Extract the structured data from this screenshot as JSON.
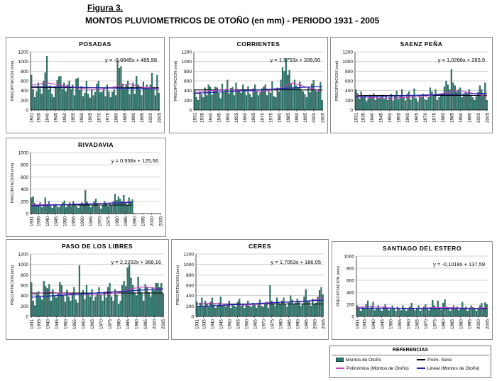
{
  "header": {
    "figure_label": "Figura 3.",
    "title": "MONTOS PLUVIOMETRICOS DE OTOÑO (en mm) - PERIODO 1931 - 2005"
  },
  "colors": {
    "bar": "#2f7a70",
    "bar_edge": "#0d3c36",
    "mean_line": "#000000",
    "poly_line": "#c23fbf",
    "linear_line": "#1f1fb3"
  },
  "legend": {
    "title": "REFERENCIAS",
    "items": [
      {
        "label": "Montos de Otoño",
        "kind": "bar"
      },
      {
        "label": "Prom. Serie",
        "kind": "mean"
      },
      {
        "label": "Polinómica (Montos de Otoño)",
        "kind": "poly"
      },
      {
        "label": "Lineal (Montos de Otoño)",
        "kind": "linear"
      }
    ]
  },
  "chart_data": [
    {
      "type": "bar",
      "title": "POSADAS",
      "equation": "y = -0,6845x + 485,98",
      "ylabel": "PRECIPITACION (mm)",
      "ylim": [
        0,
        1200
      ],
      "yticks": [
        "0",
        "200",
        "400",
        "600",
        "800",
        "1000",
        "1200"
      ],
      "xticks": [
        "1931",
        "1935",
        "1940",
        "1945",
        "1950",
        "1955",
        "1960",
        "1965",
        "1970",
        "1975",
        "1980",
        "1985",
        "1990",
        "1995",
        "2000",
        "2005"
      ],
      "x_start": 1931,
      "x_end": 2005,
      "mean": 460,
      "values": [
        720,
        420,
        260,
        380,
        560,
        440,
        330,
        600,
        770,
        1110,
        420,
        500,
        330,
        260,
        490,
        610,
        690,
        700,
        430,
        560,
        380,
        520,
        600,
        430,
        520,
        300,
        640,
        660,
        410,
        490,
        280,
        350,
        600,
        330,
        250,
        420,
        300,
        370,
        540,
        600,
        360,
        380,
        430,
        280,
        520,
        380,
        260,
        370,
        420,
        300,
        1020,
        860,
        900,
        540,
        430,
        520,
        600,
        320,
        480,
        560,
        330,
        700,
        520,
        420,
        300,
        580,
        460,
        520,
        430,
        520,
        760,
        470,
        300,
        720,
        350
      ],
      "poly": [
        [
          1931,
          510
        ],
        [
          1940,
          560
        ],
        [
          1950,
          500
        ],
        [
          1960,
          440
        ],
        [
          1970,
          420
        ],
        [
          1980,
          480
        ],
        [
          1988,
          540
        ],
        [
          1995,
          470
        ],
        [
          2005,
          440
        ]
      ],
      "linear": [
        [
          1931,
          485
        ],
        [
          2005,
          434
        ]
      ]
    },
    {
      "type": "bar",
      "title": "CORRIENTES",
      "equation": "y = 1,9753x + 339,66",
      "ylabel": "PRECIPITACION (mm)",
      "ylim": [
        0,
        1200
      ],
      "yticks": [
        "0",
        "200",
        "400",
        "600",
        "800",
        "1000",
        "1200"
      ],
      "xticks": [
        "1931",
        "1935",
        "1940",
        "1945",
        "1950",
        "1955",
        "1960",
        "1965",
        "1970",
        "1975",
        "1980",
        "1985",
        "1990",
        "1995",
        "2000",
        "2005"
      ],
      "x_start": 1931,
      "x_end": 2005,
      "mean": 415,
      "values": [
        420,
        260,
        200,
        380,
        320,
        260,
        460,
        300,
        520,
        480,
        310,
        400,
        480,
        460,
        350,
        240,
        540,
        380,
        430,
        620,
        340,
        450,
        470,
        300,
        560,
        430,
        390,
        350,
        520,
        420,
        300,
        490,
        330,
        260,
        440,
        520,
        380,
        300,
        360,
        440,
        480,
        520,
        300,
        420,
        350,
        590,
        280,
        260,
        460,
        380,
        620,
        880,
        800,
        1060,
        720,
        820,
        540,
        460,
        620,
        500,
        460,
        580,
        420,
        380,
        320,
        260,
        480,
        360,
        540,
        610,
        430,
        380,
        420,
        570,
        200
      ],
      "poly": [
        [
          1931,
          360
        ],
        [
          1940,
          400
        ],
        [
          1950,
          420
        ],
        [
          1960,
          400
        ],
        [
          1970,
          380
        ],
        [
          1980,
          440
        ],
        [
          1988,
          560
        ],
        [
          1995,
          480
        ],
        [
          2005,
          380
        ]
      ],
      "linear": [
        [
          1931,
          342
        ],
        [
          2005,
          488
        ]
      ]
    },
    {
      "type": "bar",
      "title": "SAENZ PEÑA",
      "equation": "y = 1,0266x + 265,9",
      "ylabel": "PRECIPITACION (mm)",
      "ylim": [
        0,
        1200
      ],
      "yticks": [
        "0",
        "200",
        "400",
        "600",
        "800",
        "1000",
        "1200"
      ],
      "xticks": [
        "1931",
        "1935",
        "1940",
        "1945",
        "1950",
        "1955",
        "1960",
        "1965",
        "1970",
        "1975",
        "1980",
        "1985",
        "1990",
        "1995",
        "2000",
        "2005"
      ],
      "x_start": 1931,
      "x_end": 2005,
      "mean": 300,
      "values": [
        420,
        340,
        230,
        380,
        260,
        300,
        180,
        240,
        310,
        260,
        340,
        200,
        280,
        240,
        260,
        310,
        220,
        300,
        200,
        260,
        330,
        190,
        280,
        390,
        220,
        300,
        420,
        270,
        190,
        330,
        380,
        210,
        300,
        440,
        240,
        170,
        300,
        260,
        330,
        220,
        200,
        260,
        460,
        380,
        300,
        420,
        200,
        260,
        300,
        340,
        480,
        600,
        520,
        420,
        840,
        560,
        500,
        380,
        420,
        460,
        260,
        320,
        380,
        340,
        420,
        300,
        260,
        200,
        280,
        360,
        500,
        420,
        320,
        560,
        200
      ],
      "poly": [
        [
          1931,
          300
        ],
        [
          1940,
          250
        ],
        [
          1950,
          240
        ],
        [
          1960,
          260
        ],
        [
          1970,
          280
        ],
        [
          1980,
          340
        ],
        [
          1988,
          400
        ],
        [
          1995,
          360
        ],
        [
          2005,
          280
        ]
      ],
      "linear": [
        [
          1931,
          267
        ],
        [
          2005,
          343
        ]
      ]
    },
    {
      "type": "bar",
      "title": "RIVADAVIA",
      "equation": "y = 0,938x + 125,56",
      "ylabel": "PRECIPITACION (mm)",
      "ylim": [
        0,
        1000
      ],
      "yticks": [
        "0",
        "200",
        "400",
        "600",
        "800",
        "1000"
      ],
      "xticks": [
        "1931",
        "1935",
        "1940",
        "1945",
        "1950",
        "1955",
        "1960",
        "1965",
        "1970",
        "1975",
        "1980",
        "1985",
        "1990",
        "1995",
        "2000",
        "2005"
      ],
      "x_start": 1931,
      "x_end": 1989,
      "mean": 140,
      "values": [
        260,
        280,
        170,
        120,
        150,
        180,
        100,
        120,
        260,
        150,
        200,
        120,
        90,
        140,
        160,
        110,
        100,
        130,
        180,
        210,
        100,
        150,
        180,
        120,
        200,
        160,
        120,
        90,
        150,
        180,
        140,
        380,
        190,
        160,
        100,
        130,
        200,
        240,
        150,
        120,
        80,
        130,
        200,
        160,
        120,
        170,
        130,
        200,
        320,
        220,
        280,
        240,
        200,
        300,
        180,
        140,
        260,
        200,
        230
      ],
      "poly": [
        [
          1931,
          140
        ],
        [
          1940,
          150
        ],
        [
          1950,
          140
        ],
        [
          1960,
          160
        ],
        [
          1970,
          160
        ],
        [
          1980,
          180
        ],
        [
          1989,
          190
        ]
      ],
      "linear": [
        [
          1931,
          127
        ],
        [
          1989,
          182
        ]
      ]
    },
    {
      "type": "bar",
      "title": "PASO DE LOS LIBRES",
      "equation": "y = 2,2202x + 368,16",
      "ylabel": "PRECIPITACION (mm)",
      "ylim": [
        0,
        1200
      ],
      "yticks": [
        "0",
        "200",
        "400",
        "600",
        "800",
        "1000",
        "1200"
      ],
      "xticks": [
        "1931",
        "1935",
        "1940",
        "1945",
        "1950",
        "1955",
        "1960",
        "1965",
        "1970",
        "1975",
        "1980",
        "1985",
        "1990",
        "1995",
        "2000",
        "2005"
      ],
      "x_start": 1931,
      "x_end": 2005,
      "mean": 450,
      "values": [
        650,
        300,
        210,
        420,
        480,
        380,
        320,
        680,
        580,
        540,
        620,
        300,
        520,
        390,
        360,
        440,
        660,
        600,
        400,
        280,
        510,
        380,
        300,
        420,
        560,
        320,
        260,
        980,
        420,
        500,
        330,
        600,
        440,
        380,
        520,
        300,
        380,
        460,
        560,
        410,
        300,
        470,
        360,
        560,
        640,
        380,
        300,
        520,
        420,
        240,
        300,
        600,
        680,
        580,
        940,
        1000,
        740,
        600,
        460,
        400,
        760,
        540,
        460,
        300,
        620,
        560,
        460,
        380,
        560,
        500,
        640,
        640,
        560,
        640,
        440
      ],
      "poly": [
        [
          1931,
          420
        ],
        [
          1940,
          470
        ],
        [
          1950,
          440
        ],
        [
          1960,
          430
        ],
        [
          1970,
          420
        ],
        [
          1980,
          460
        ],
        [
          1988,
          540
        ],
        [
          1995,
          570
        ],
        [
          2005,
          520
        ]
      ],
      "linear": [
        [
          1931,
          370
        ],
        [
          2005,
          534
        ]
      ]
    },
    {
      "type": "bar",
      "title": "CERES",
      "equation": "y = 1,7053x + 186,05",
      "ylabel": "PRECIPITACION (mm)",
      "ylim": [
        0,
        1200
      ],
      "yticks": [
        "0",
        "200",
        "400",
        "600",
        "800",
        "1000",
        "1200"
      ],
      "xticks": [
        "1931",
        "1935",
        "1940",
        "1945",
        "1950",
        "1955",
        "1960",
        "1965",
        "1970",
        "1975",
        "1980",
        "1985",
        "1990",
        "1995",
        "2000",
        "2005"
      ],
      "x_start": 1931,
      "x_end": 2005,
      "mean": 240,
      "values": [
        280,
        180,
        260,
        360,
        200,
        300,
        240,
        180,
        280,
        360,
        220,
        160,
        200,
        260,
        380,
        200,
        240,
        180,
        220,
        300,
        160,
        240,
        200,
        180,
        280,
        340,
        200,
        220,
        160,
        240,
        300,
        200,
        180,
        260,
        220,
        160,
        240,
        320,
        200,
        180,
        240,
        280,
        160,
        600,
        300,
        240,
        200,
        360,
        280,
        240,
        300,
        360,
        240,
        180,
        260,
        400,
        320,
        240,
        260,
        340,
        300,
        200,
        240,
        380,
        520,
        280,
        300,
        200,
        340,
        240,
        260,
        380,
        500,
        560,
        420
      ],
      "poly": [
        [
          1931,
          240
        ],
        [
          1940,
          250
        ],
        [
          1950,
          230
        ],
        [
          1960,
          220
        ],
        [
          1970,
          240
        ],
        [
          1980,
          270
        ],
        [
          1990,
          280
        ],
        [
          1998,
          300
        ],
        [
          2005,
          360
        ]
      ],
      "linear": [
        [
          1931,
          188
        ],
        [
          2005,
          314
        ]
      ]
    },
    {
      "type": "bar",
      "title": "SANTIAGO DEL ESTERO",
      "equation": "y = -0,1018x + 137,59",
      "ylabel": "PRECIPITACION (mm)",
      "ylim": [
        0,
        1000
      ],
      "yticks": [
        "0",
        "200",
        "400",
        "600",
        "800",
        "1000"
      ],
      "xticks": [
        "1931",
        "1935",
        "1940",
        "1945",
        "1950",
        "1955",
        "1960",
        "1965",
        "1970",
        "1975",
        "1980",
        "1985",
        "1990",
        "1995",
        "2000",
        "2005"
      ],
      "x_start": 1931,
      "x_end": 2005,
      "mean": 135,
      "values": [
        180,
        120,
        90,
        160,
        140,
        200,
        260,
        120,
        160,
        240,
        100,
        140,
        180,
        120,
        90,
        160,
        200,
        140,
        100,
        120,
        180,
        140,
        90,
        160,
        120,
        100,
        180,
        140,
        90,
        120,
        160,
        220,
        120,
        100,
        140,
        180,
        90,
        120,
        160,
        200,
        130,
        100,
        150,
        270,
        180,
        120,
        260,
        140,
        110,
        220,
        280,
        160,
        120,
        90,
        140,
        180,
        120,
        160,
        100,
        140,
        240,
        120,
        160,
        90,
        130,
        180,
        150,
        120,
        90,
        140,
        180,
        220,
        140,
        230,
        200
      ],
      "poly": [
        [
          1931,
          150
        ],
        [
          1940,
          170
        ],
        [
          1950,
          140
        ],
        [
          1960,
          130
        ],
        [
          1970,
          140
        ],
        [
          1980,
          150
        ],
        [
          1990,
          140
        ],
        [
          2000,
          135
        ],
        [
          2005,
          150
        ]
      ],
      "linear": [
        [
          1931,
          137
        ],
        [
          2005,
          130
        ]
      ]
    }
  ]
}
